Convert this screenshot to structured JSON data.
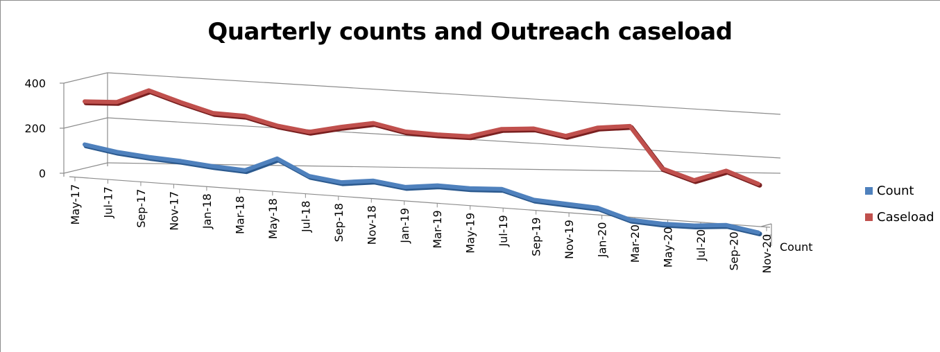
{
  "chart_data": {
    "type": "line",
    "title": "Quarterly counts and Outreach caseload",
    "categories": [
      "May-17",
      "Jul-17",
      "Sep-17",
      "Nov-17",
      "Jan-18",
      "Mar-18",
      "May-18",
      "Jul-18",
      "Sep-18",
      "Nov-18",
      "Jan-19",
      "Mar-19",
      "May-19",
      "Jul-19",
      "Sep-19",
      "Nov-19",
      "Jan-20",
      "Mar-20",
      "May-20",
      "Jul-20",
      "Sep-20",
      "Nov-20"
    ],
    "series": [
      {
        "name": "Count",
        "color": "#4f81bd",
        "values": [
          60,
          40,
          30,
          25,
          15,
          10,
          75,
          10,
          -5,
          15,
          0,
          20,
          20,
          30,
          -5,
          -10,
          -15,
          -55,
          -60,
          -55,
          -40,
          -60
        ]
      },
      {
        "name": "Caseload",
        "color": "#c0504d",
        "values": [
          205,
          215,
          280,
          240,
          205,
          205,
          175,
          160,
          195,
          225,
          200,
          200,
          205,
          250,
          265,
          245,
          295,
          315,
          140,
          100,
          155,
          110
        ]
      }
    ],
    "yticks": [
      0,
      200,
      400
    ],
    "depth_axis_label": "Count",
    "legend_position": "right",
    "gridlines": true,
    "style": "3d-line"
  }
}
